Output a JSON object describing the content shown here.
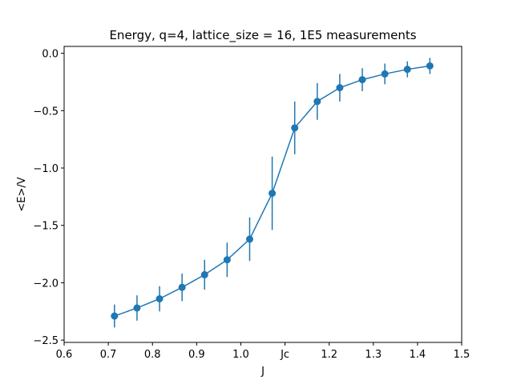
{
  "chart_data": {
    "type": "line",
    "title": "Energy, q=4, lattice_size = 16, 1E5 measurements",
    "xlabel": "J",
    "ylabel": "<E>/V",
    "xlim": [
      0.6,
      1.5
    ],
    "ylim": [
      -2.52,
      0.06
    ],
    "x_ticks": [
      {
        "value": 0.6,
        "label": "0.6"
      },
      {
        "value": 0.7,
        "label": "0.7"
      },
      {
        "value": 0.8,
        "label": "0.8"
      },
      {
        "value": 0.9,
        "label": "0.9"
      },
      {
        "value": 1.0,
        "label": "1.0"
      },
      {
        "value": 1.1,
        "label": "Jc"
      },
      {
        "value": 1.2,
        "label": "1.2"
      },
      {
        "value": 1.3,
        "label": "1.3"
      },
      {
        "value": 1.4,
        "label": "1.4"
      },
      {
        "value": 1.5,
        "label": "1.5"
      }
    ],
    "y_ticks": [
      {
        "value": 0.0,
        "label": "0.0"
      },
      {
        "value": -0.5,
        "label": "−0.5"
      },
      {
        "value": -1.0,
        "label": "−1.0"
      },
      {
        "value": -1.5,
        "label": "−1.5"
      },
      {
        "value": -2.0,
        "label": "−2.0"
      },
      {
        "value": -2.5,
        "label": "−2.5"
      }
    ],
    "grid": false,
    "series": [
      {
        "color": "#1f77b4",
        "marker": "circle",
        "error_bars": true,
        "x": [
          0.714,
          0.765,
          0.816,
          0.867,
          0.918,
          0.969,
          1.02,
          1.071,
          1.122,
          1.173,
          1.224,
          1.275,
          1.326,
          1.377,
          1.428
        ],
        "y": [
          -2.29,
          -2.22,
          -2.14,
          -2.04,
          -1.93,
          -1.8,
          -1.62,
          -1.22,
          -0.65,
          -0.42,
          -0.3,
          -0.23,
          -0.18,
          -0.14,
          -0.11
        ],
        "yerr": [
          0.1,
          0.11,
          0.11,
          0.12,
          0.13,
          0.15,
          0.19,
          0.32,
          0.23,
          0.16,
          0.12,
          0.1,
          0.09,
          0.07,
          0.07
        ]
      }
    ]
  }
}
